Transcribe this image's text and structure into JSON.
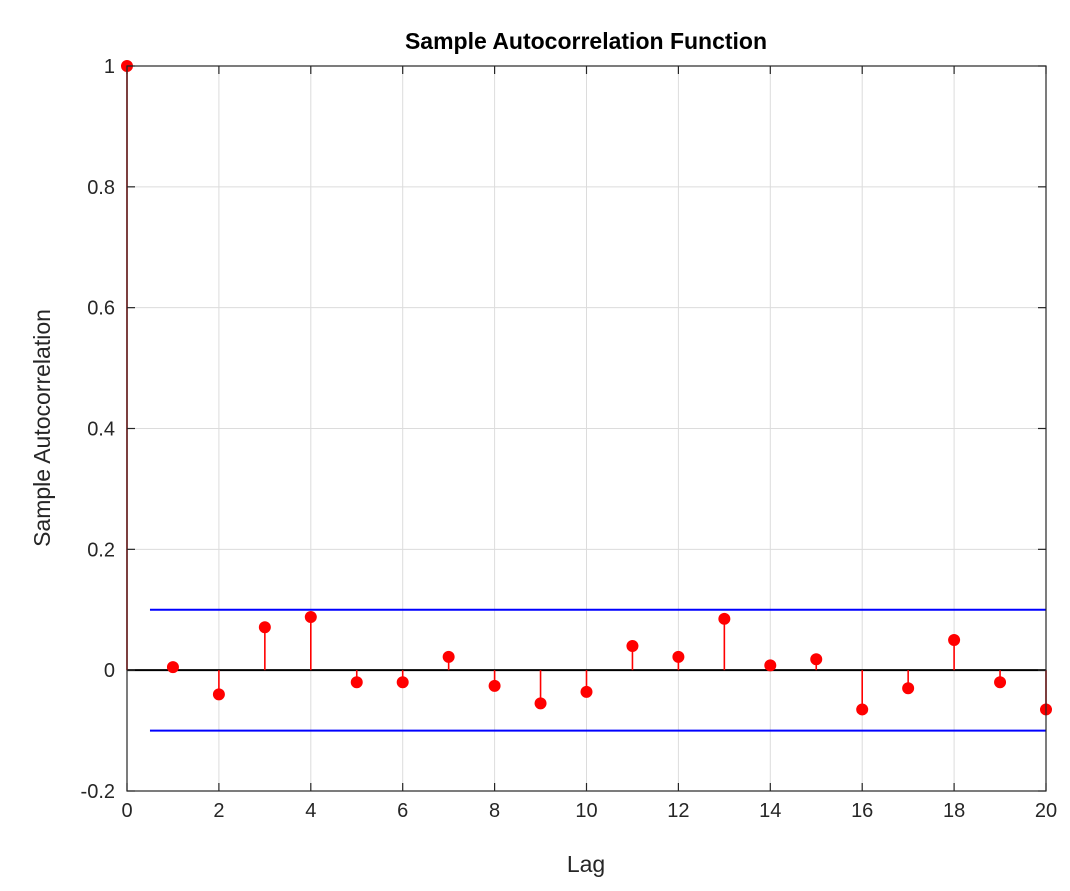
{
  "chart_data": {
    "type": "stem",
    "title": "Sample Autocorrelation Function",
    "xlabel": "Lag",
    "ylabel": "Sample Autocorrelation",
    "xlim": [
      0,
      20
    ],
    "ylim": [
      -0.2,
      1
    ],
    "xticks": [
      "0",
      "2",
      "4",
      "6",
      "8",
      "10",
      "12",
      "14",
      "16",
      "18",
      "20"
    ],
    "yticks": [
      "-0.2",
      "0",
      "0.2",
      "0.4",
      "0.6",
      "0.8",
      "1"
    ],
    "grid": true,
    "series": [
      {
        "x": [
          0,
          1,
          2,
          3,
          4,
          5,
          6,
          7,
          8,
          9,
          10,
          11,
          12,
          13,
          14,
          15,
          16,
          17,
          18,
          19,
          20
        ],
        "values": [
          1.0,
          0.005,
          -0.04,
          0.071,
          0.088,
          -0.02,
          -0.02,
          0.022,
          -0.026,
          -0.055,
          -0.036,
          0.04,
          0.022,
          0.085,
          0.008,
          0.018,
          -0.065,
          -0.03,
          0.05,
          -0.02,
          -0.065
        ],
        "color": "#ff0000"
      }
    ],
    "confidence_bounds": {
      "upper": 0.1,
      "lower": -0.1,
      "x_start": 0.5,
      "x_end": 20,
      "color": "#0000ff"
    },
    "zero_line_color": "#000000"
  }
}
